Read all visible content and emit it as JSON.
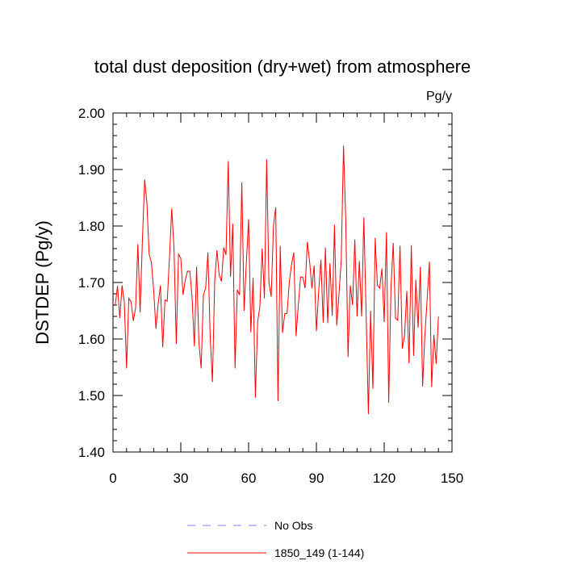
{
  "chart_data": {
    "type": "line",
    "title": "total dust deposition (dry+wet) from atmosphere",
    "units_label": "Pg/y",
    "xlabel": "",
    "ylabel": "DSTDEP  (Pg/y)",
    "xlim": [
      0,
      150
    ],
    "ylim": [
      1.4,
      2.0
    ],
    "x_ticks": [
      0,
      30,
      60,
      90,
      120,
      150
    ],
    "x_tick_labels": [
      "0",
      "30",
      "60",
      "90",
      "120",
      "150"
    ],
    "y_ticks": [
      1.4,
      1.5,
      1.6,
      1.7,
      1.8,
      1.9,
      2.0
    ],
    "y_tick_labels": [
      "1.40",
      "1.50",
      "1.60",
      "1.70",
      "1.80",
      "1.90",
      "2.00"
    ],
    "grid": false,
    "legend_placement": "bottom-center",
    "legend": [
      {
        "label": "No Obs",
        "color": "#8080ff",
        "style": "dashed"
      },
      {
        "label": "1850_149 (1-144)",
        "color": "#ff0000",
        "style": "solid"
      }
    ],
    "series": [
      {
        "name": "1850_149 (1-144)",
        "color": "#ff0000",
        "x_start": 1,
        "values": [
          1.66,
          1.694,
          1.637,
          1.695,
          1.666,
          1.548,
          1.672,
          1.666,
          1.632,
          1.655,
          1.768,
          1.647,
          1.773,
          1.882,
          1.841,
          1.75,
          1.735,
          1.686,
          1.618,
          1.663,
          1.695,
          1.585,
          1.669,
          1.667,
          1.745,
          1.831,
          1.759,
          1.591,
          1.75,
          1.743,
          1.678,
          1.705,
          1.72,
          1.72,
          1.673,
          1.587,
          1.728,
          1.595,
          1.548,
          1.678,
          1.69,
          1.753,
          1.605,
          1.524,
          1.703,
          1.757,
          1.713,
          1.702,
          1.762,
          1.749,
          1.915,
          1.71,
          1.804,
          1.548,
          1.687,
          1.678,
          1.877,
          1.65,
          1.735,
          1.812,
          1.612,
          1.708,
          1.496,
          1.63,
          1.658,
          1.76,
          1.672,
          1.918,
          1.7,
          1.675,
          1.8,
          1.833,
          1.49,
          1.765,
          1.611,
          1.645,
          1.645,
          1.7,
          1.732,
          1.753,
          1.605,
          1.66,
          1.71,
          1.709,
          1.69,
          1.772,
          1.737,
          1.69,
          1.73,
          1.614,
          1.684,
          1.74,
          1.629,
          1.762,
          1.628,
          1.734,
          1.641,
          1.802,
          1.624,
          1.68,
          1.741,
          1.942,
          1.808,
          1.568,
          1.695,
          1.66,
          1.776,
          1.64,
          1.738,
          1.64,
          1.815,
          1.645,
          1.467,
          1.65,
          1.512,
          1.779,
          1.695,
          1.69,
          1.725,
          1.63,
          1.789,
          1.487,
          1.69,
          1.77,
          1.637,
          1.633,
          1.765,
          1.583,
          1.605,
          1.685,
          1.557,
          1.766,
          1.57,
          1.705,
          1.62,
          1.728,
          1.516,
          1.607,
          1.67,
          1.737,
          1.515,
          1.607,
          1.556,
          1.64
        ]
      }
    ]
  }
}
